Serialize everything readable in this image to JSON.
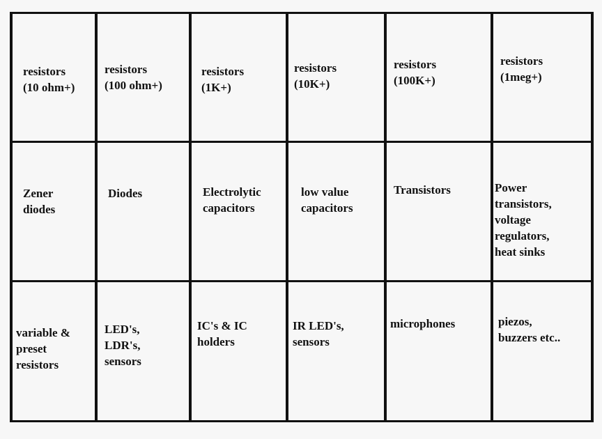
{
  "grid": [
    [
      "resistors\n(10 ohm+)",
      "resistors\n(100 ohm+)",
      "resistors\n(1K+)",
      "resistors\n(10K+)",
      "resistors\n(100K+)",
      "resistors\n(1meg+)"
    ],
    [
      "Zener\ndiodes",
      "Diodes",
      "Electrolytic\ncapacitors",
      "low value\ncapacitors",
      "Transistors",
      "Power\ntransistors,\nvoltage\nregulators,\nheat sinks"
    ],
    [
      "variable &\npreset\nresistors",
      "LED's,\nLDR's,\nsensors",
      "IC's & IC\nholders",
      "IR LED's,\nsensors",
      "microphones",
      "piezos,\nbuzzers etc.."
    ]
  ]
}
